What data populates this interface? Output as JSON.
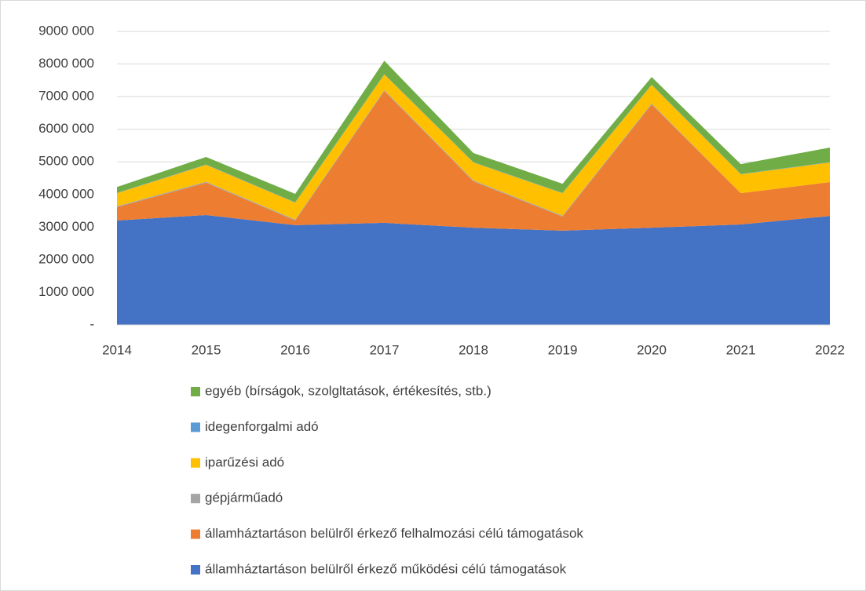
{
  "chart_data": {
    "type": "area",
    "stacked": true,
    "categories": [
      "2014",
      "2015",
      "2016",
      "2017",
      "2018",
      "2019",
      "2020",
      "2021",
      "2022"
    ],
    "ylim": [
      0,
      9000000
    ],
    "yticks": [
      {
        "value": 0,
        "label": "-"
      },
      {
        "value": 1000000,
        "label": "1000 000"
      },
      {
        "value": 2000000,
        "label": "2000 000"
      },
      {
        "value": 3000000,
        "label": "3000 000"
      },
      {
        "value": 4000000,
        "label": "4000 000"
      },
      {
        "value": 5000000,
        "label": "5000 000"
      },
      {
        "value": 6000000,
        "label": "6000 000"
      },
      {
        "value": 7000000,
        "label": "7000 000"
      },
      {
        "value": 8000000,
        "label": "8000 000"
      },
      {
        "value": 9000000,
        "label": "9000 000"
      }
    ],
    "grid": true,
    "legend": "bottom",
    "series": [
      {
        "name": "államháztartáson belülről érkező működési célú támogatások",
        "color": "#4472c4",
        "values": [
          3200000,
          3370000,
          3060000,
          3130000,
          2980000,
          2890000,
          2980000,
          3080000,
          3340000
        ]
      },
      {
        "name": "államháztartáson belülről érkező felhalmozási célú támogatások",
        "color": "#ed7d31",
        "values": [
          410000,
          990000,
          140000,
          4040000,
          1420000,
          430000,
          3780000,
          960000,
          1040000
        ]
      },
      {
        "name": "gépjárműadó",
        "color": "#a5a5a5",
        "values": [
          30000,
          30000,
          30000,
          30000,
          30000,
          30000,
          30000,
          0,
          0
        ]
      },
      {
        "name": "iparűzési adó",
        "color": "#ffc000",
        "values": [
          400000,
          520000,
          520000,
          480000,
          550000,
          690000,
          570000,
          580000,
          600000
        ]
      },
      {
        "name": "idegenforgalmi adó",
        "color": "#5b9bd5",
        "values": [
          10000,
          10000,
          10000,
          10000,
          10000,
          10000,
          10000,
          10000,
          10000
        ]
      },
      {
        "name": "egyéb (bírságok, szolgltatások, értékesítés, stb.)",
        "color": "#70ad47",
        "values": [
          180000,
          230000,
          260000,
          410000,
          280000,
          280000,
          230000,
          300000,
          450000
        ]
      }
    ]
  }
}
